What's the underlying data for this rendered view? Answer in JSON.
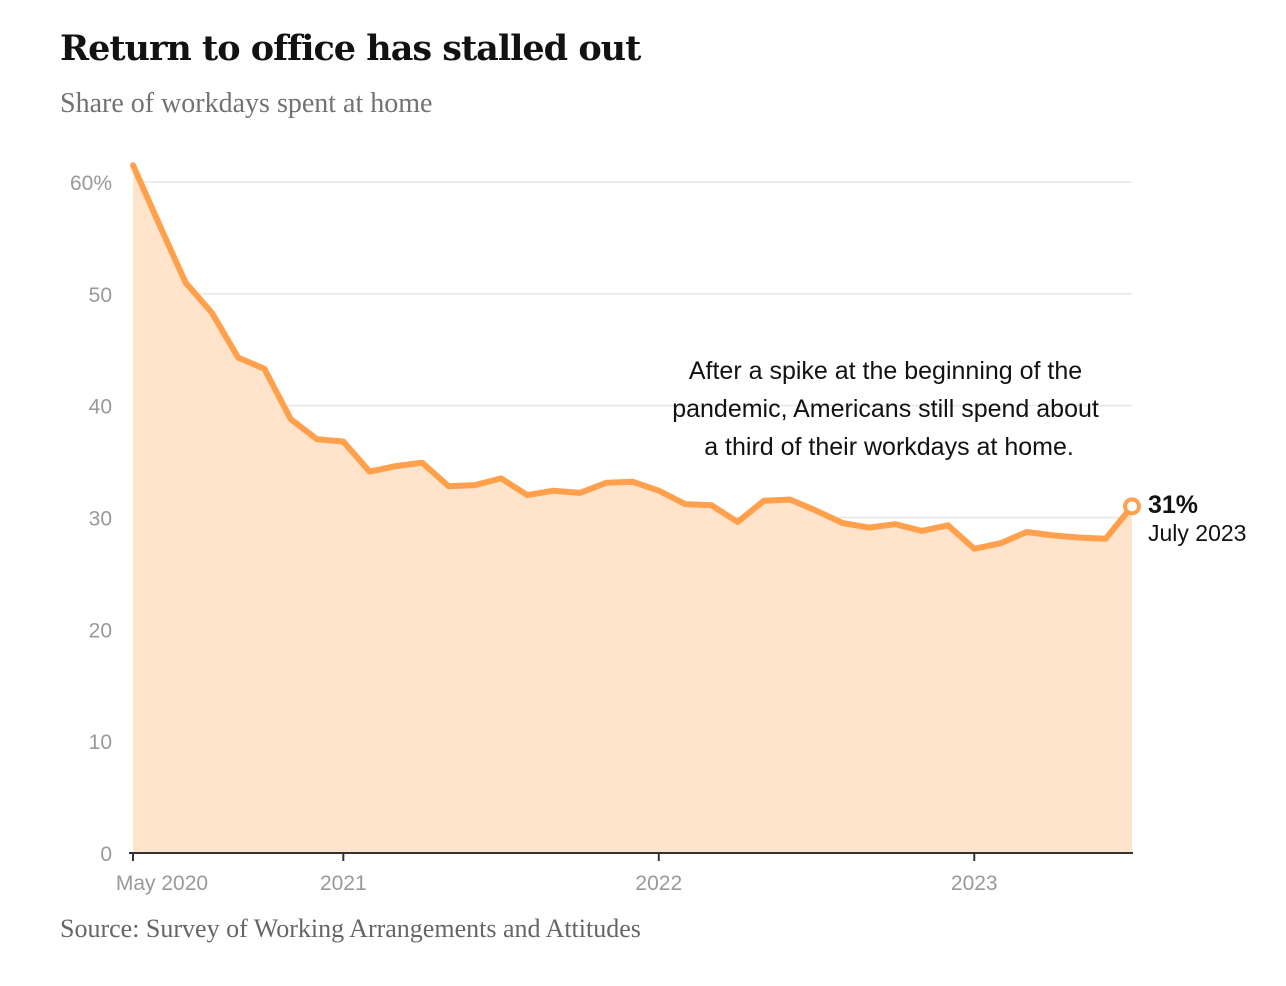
{
  "header": {
    "title": "Return to office has stalled out",
    "subtitle": "Share of workdays spent at home"
  },
  "footer": {
    "source": "Source: Survey of Working Arrangements and Attitudes"
  },
  "colors": {
    "line": "#FFA04C",
    "area": "#FFE3CB",
    "grid": "#E6E6E6",
    "axis": "#333333"
  },
  "chart_data": {
    "type": "area",
    "title": "Return to office has stalled out",
    "subtitle": "Share of workdays spent at home",
    "xlabel": "",
    "ylabel": "",
    "ylim": [
      0,
      60
    ],
    "yticks": [
      0,
      10,
      20,
      30,
      40,
      50,
      60
    ],
    "ytick_labels": [
      "0",
      "10",
      "20",
      "30",
      "40",
      "50",
      "60%"
    ],
    "xlim": [
      "2020-05",
      "2023-07"
    ],
    "xticks": [
      "2020-05",
      "2021-01",
      "2022-01",
      "2023-01"
    ],
    "xtick_labels": [
      "May 2020",
      "2021",
      "2022",
      "2023"
    ],
    "grid": true,
    "series": [
      {
        "x": [
          "2020-05",
          "2020-06",
          "2020-07",
          "2020-08",
          "2020-09",
          "2020-10",
          "2020-11",
          "2020-12",
          "2021-01",
          "2021-02",
          "2021-03",
          "2021-04",
          "2021-05",
          "2021-06",
          "2021-07",
          "2021-08",
          "2021-09",
          "2021-10",
          "2021-11",
          "2021-12",
          "2022-01",
          "2022-02",
          "2022-03",
          "2022-04",
          "2022-05",
          "2022-06",
          "2022-07",
          "2022-08",
          "2022-09",
          "2022-10",
          "2022-11",
          "2022-12",
          "2023-01",
          "2023-02",
          "2023-03",
          "2023-04",
          "2023-05",
          "2023-06",
          "2023-07"
        ],
        "values": [
          61.5,
          56.2,
          51.0,
          48.3,
          44.3,
          43.3,
          38.8,
          37.0,
          36.8,
          34.1,
          34.6,
          34.9,
          32.8,
          32.9,
          33.5,
          32.0,
          32.4,
          32.2,
          33.1,
          33.2,
          32.4,
          31.2,
          31.1,
          29.6,
          31.5,
          31.6,
          30.6,
          29.5,
          29.1,
          29.4,
          28.8,
          29.3,
          27.2,
          27.7,
          28.7,
          28.4,
          28.2,
          28.1,
          31.0
        ]
      }
    ],
    "annotation": "After a spike at the beginning of the pandemic, Americans still spend about a third of their workdays at home.",
    "annotation_lines": [
      "After a spike at the beginning of the",
      "pandemic, Americans still spend about",
      "a third of their workdays at home."
    ],
    "end_label": {
      "value": "31%",
      "date": "July 2023"
    }
  }
}
